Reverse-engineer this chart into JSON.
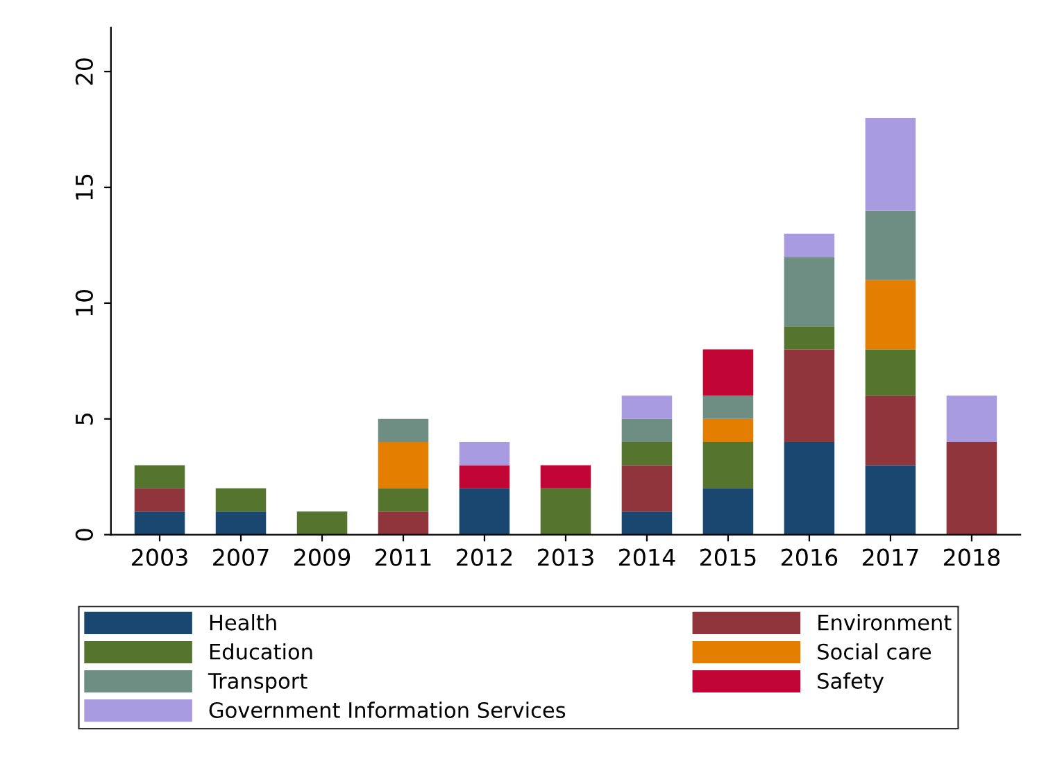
{
  "chart_data": {
    "type": "bar",
    "stacked": true,
    "categories": [
      "2003",
      "2007",
      "2009",
      "2011",
      "2012",
      "2013",
      "2014",
      "2015",
      "2016",
      "2017",
      "2018"
    ],
    "series": [
      {
        "name": "Health",
        "color": "#1a476f",
        "values": [
          1,
          1,
          null,
          null,
          2,
          null,
          1,
          2,
          4,
          3,
          null
        ]
      },
      {
        "name": "Environment",
        "color": "#90353b",
        "values": [
          1,
          null,
          null,
          1,
          null,
          null,
          2,
          null,
          4,
          3,
          4
        ]
      },
      {
        "name": "Education",
        "color": "#55752f",
        "values": [
          1,
          1,
          1,
          1,
          null,
          2,
          1,
          2,
          1,
          2,
          null
        ]
      },
      {
        "name": "Social care",
        "color": "#e37e00",
        "values": [
          null,
          null,
          null,
          2,
          null,
          null,
          null,
          1,
          null,
          3,
          null
        ]
      },
      {
        "name": "Transport",
        "color": "#6e8e84",
        "values": [
          null,
          null,
          null,
          1,
          null,
          null,
          1,
          1,
          3,
          3,
          null
        ]
      },
      {
        "name": "Safety",
        "color": "#c10534",
        "values": [
          null,
          null,
          null,
          null,
          1,
          1,
          null,
          2,
          null,
          null,
          null
        ]
      },
      {
        "name": "Government Information Services",
        "color": "#a99be0",
        "values": [
          null,
          null,
          null,
          null,
          1,
          null,
          1,
          null,
          1,
          4,
          2
        ]
      }
    ],
    "ylim": [
      0,
      21.9
    ],
    "yticks": [
      0,
      5,
      10,
      15,
      20
    ],
    "grid": false,
    "legend": "bottom"
  }
}
